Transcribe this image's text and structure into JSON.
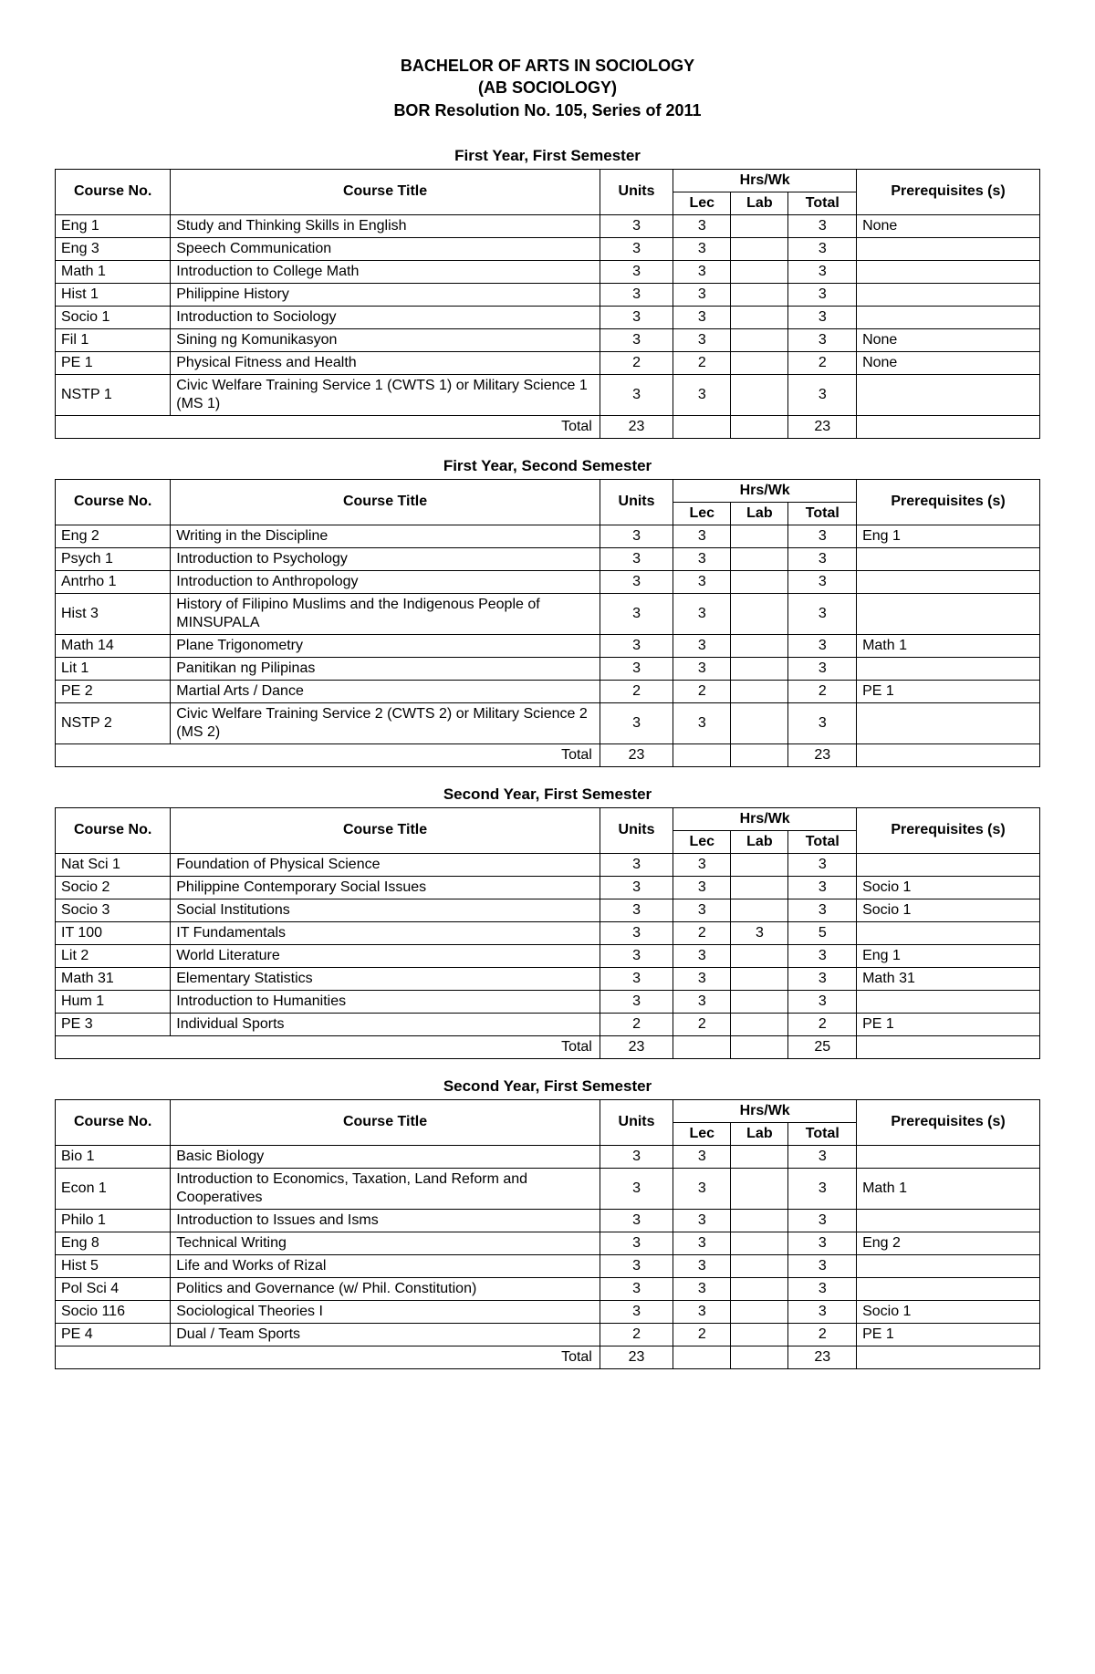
{
  "header": {
    "line1": "BACHELOR OF ARTS IN SOCIOLOGY",
    "line2": "(AB SOCIOLOGY)",
    "line3": "BOR Resolution No. 105, Series of 2011"
  },
  "columns": {
    "course_no": "Course No.",
    "course_title": "Course Title",
    "units": "Units",
    "hrswk": "Hrs/Wk",
    "lec": "Lec",
    "lab": "Lab",
    "total": "Total",
    "prereq": "Prerequisites (s)"
  },
  "total_label": "Total",
  "semesters": [
    {
      "title": "First Year, First Semester",
      "rows": [
        {
          "no": "Eng 1",
          "title": "Study and Thinking Skills in English",
          "units": "3",
          "lec": "3",
          "lab": "",
          "total": "3",
          "prereq": "None"
        },
        {
          "no": "Eng 3",
          "title": "Speech Communication",
          "units": "3",
          "lec": "3",
          "lab": "",
          "total": "3",
          "prereq": ""
        },
        {
          "no": "Math 1",
          "title": "Introduction to College Math",
          "units": "3",
          "lec": "3",
          "lab": "",
          "total": "3",
          "prereq": ""
        },
        {
          "no": "Hist 1",
          "title": "Philippine History",
          "units": "3",
          "lec": "3",
          "lab": "",
          "total": "3",
          "prereq": ""
        },
        {
          "no": "Socio 1",
          "title": "Introduction to Sociology",
          "units": "3",
          "lec": "3",
          "lab": "",
          "total": "3",
          "prereq": ""
        },
        {
          "no": "Fil 1",
          "title": "Sining ng Komunikasyon",
          "units": "3",
          "lec": "3",
          "lab": "",
          "total": "3",
          "prereq": "None"
        },
        {
          "no": "PE 1",
          "title": "Physical Fitness and Health",
          "units": "2",
          "lec": "2",
          "lab": "",
          "total": "2",
          "prereq": "None"
        },
        {
          "no": "NSTP 1",
          "title": "Civic Welfare Training Service 1 (CWTS 1) or Military Science 1 (MS 1)",
          "units": "3",
          "lec": "3",
          "lab": "",
          "total": "3",
          "prereq": ""
        }
      ],
      "totals": {
        "units": "23",
        "lec": "",
        "lab": "",
        "total": "23"
      }
    },
    {
      "title": "First Year, Second Semester",
      "rows": [
        {
          "no": "Eng 2",
          "title": "Writing in the Discipline",
          "units": "3",
          "lec": "3",
          "lab": "",
          "total": "3",
          "prereq": "Eng 1"
        },
        {
          "no": "Psych 1",
          "title": "Introduction to Psychology",
          "units": "3",
          "lec": "3",
          "lab": "",
          "total": "3",
          "prereq": ""
        },
        {
          "no": "Antrho 1",
          "title": "Introduction to Anthropology",
          "units": "3",
          "lec": "3",
          "lab": "",
          "total": "3",
          "prereq": ""
        },
        {
          "no": "Hist 3",
          "title": "History of Filipino Muslims and the Indigenous People of MINSUPALA",
          "units": "3",
          "lec": "3",
          "lab": "",
          "total": "3",
          "prereq": ""
        },
        {
          "no": "Math 14",
          "title": "Plane Trigonometry",
          "units": "3",
          "lec": "3",
          "lab": "",
          "total": "3",
          "prereq": "Math 1"
        },
        {
          "no": "Lit 1",
          "title": "Panitikan ng Pilipinas",
          "units": "3",
          "lec": "3",
          "lab": "",
          "total": "3",
          "prereq": ""
        },
        {
          "no": "PE 2",
          "title": "Martial Arts / Dance",
          "units": "2",
          "lec": "2",
          "lab": "",
          "total": "2",
          "prereq": "PE 1"
        },
        {
          "no": "NSTP 2",
          "title": "Civic Welfare Training Service 2 (CWTS 2) or Military Science 2 (MS 2)",
          "units": "3",
          "lec": "3",
          "lab": "",
          "total": "3",
          "prereq": ""
        }
      ],
      "totals": {
        "units": "23",
        "lec": "",
        "lab": "",
        "total": "23"
      }
    },
    {
      "title": "Second Year, First Semester",
      "rows": [
        {
          "no": "Nat Sci 1",
          "title": "Foundation of Physical Science",
          "units": "3",
          "lec": "3",
          "lab": "",
          "total": "3",
          "prereq": ""
        },
        {
          "no": "Socio 2",
          "title": "Philippine Contemporary Social Issues",
          "units": "3",
          "lec": "3",
          "lab": "",
          "total": "3",
          "prereq": "Socio 1"
        },
        {
          "no": "Socio 3",
          "title": "Social Institutions",
          "units": "3",
          "lec": "3",
          "lab": "",
          "total": "3",
          "prereq": "Socio 1"
        },
        {
          "no": "IT 100",
          "title": "IT Fundamentals",
          "units": "3",
          "lec": "2",
          "lab": "3",
          "total": "5",
          "prereq": ""
        },
        {
          "no": "Lit 2",
          "title": "World Literature",
          "units": "3",
          "lec": "3",
          "lab": "",
          "total": "3",
          "prereq": "Eng 1"
        },
        {
          "no": "Math 31",
          "title": "Elementary Statistics",
          "units": "3",
          "lec": "3",
          "lab": "",
          "total": "3",
          "prereq": "Math 31"
        },
        {
          "no": "Hum 1",
          "title": "Introduction to Humanities",
          "units": "3",
          "lec": "3",
          "lab": "",
          "total": "3",
          "prereq": ""
        },
        {
          "no": "PE 3",
          "title": "Individual Sports",
          "units": "2",
          "lec": "2",
          "lab": "",
          "total": "2",
          "prereq": "PE 1"
        }
      ],
      "totals": {
        "units": "23",
        "lec": "",
        "lab": "",
        "total": "25"
      }
    },
    {
      "title": "Second Year, First Semester",
      "rows": [
        {
          "no": "Bio 1",
          "title": "Basic Biology",
          "units": "3",
          "lec": "3",
          "lab": "",
          "total": "3",
          "prereq": ""
        },
        {
          "no": "Econ 1",
          "title": "Introduction to Economics, Taxation, Land Reform and Cooperatives",
          "units": "3",
          "lec": "3",
          "lab": "",
          "total": "3",
          "prereq": "Math 1"
        },
        {
          "no": "Philo 1",
          "title": "Introduction to Issues and Isms",
          "units": "3",
          "lec": "3",
          "lab": "",
          "total": "3",
          "prereq": ""
        },
        {
          "no": "Eng 8",
          "title": "Technical Writing",
          "units": "3",
          "lec": "3",
          "lab": "",
          "total": "3",
          "prereq": "Eng 2"
        },
        {
          "no": "Hist 5",
          "title": "Life and Works of Rizal",
          "units": "3",
          "lec": "3",
          "lab": "",
          "total": "3",
          "prereq": ""
        },
        {
          "no": "Pol Sci 4",
          "title": "Politics and Governance (w/ Phil. Constitution)",
          "units": "3",
          "lec": "3",
          "lab": "",
          "total": "3",
          "prereq": ""
        },
        {
          "no": "Socio 116",
          "title": "Sociological Theories I",
          "units": "3",
          "lec": "3",
          "lab": "",
          "total": "3",
          "prereq": "Socio 1"
        },
        {
          "no": "PE 4",
          "title": "Dual / Team Sports",
          "units": "2",
          "lec": "2",
          "lab": "",
          "total": "2",
          "prereq": "PE 1"
        }
      ],
      "totals": {
        "units": "23",
        "lec": "",
        "lab": "",
        "total": "23"
      }
    }
  ]
}
